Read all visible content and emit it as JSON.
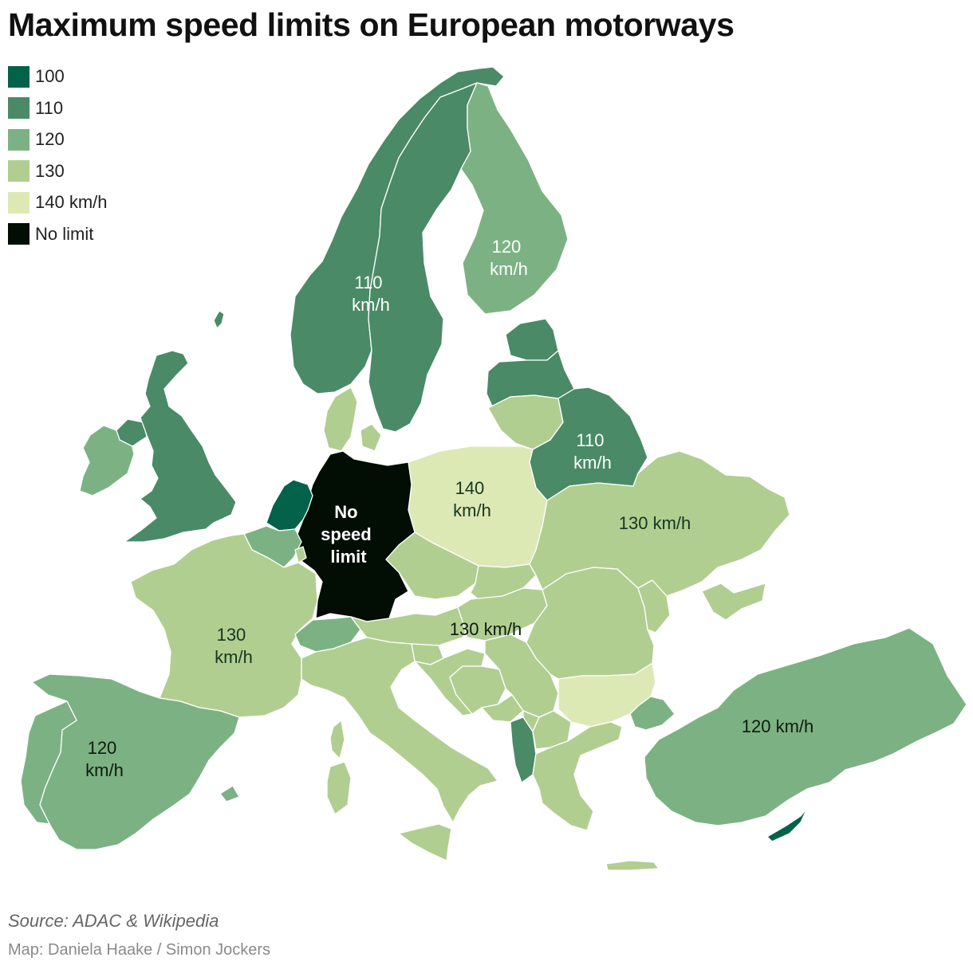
{
  "title": "Maximum speed limits on European motorways",
  "legend": [
    {
      "label": "100",
      "color": "#03624a"
    },
    {
      "label": "110",
      "color": "#4a8a67"
    },
    {
      "label": "120",
      "color": "#7cb283"
    },
    {
      "label": "130",
      "color": "#b1ce91"
    },
    {
      "label": "140 km/h",
      "color": "#dde9b5"
    },
    {
      "label": "No limit",
      "color": "#020d04"
    }
  ],
  "labels": {
    "finland": [
      "120",
      "km/h"
    ],
    "sweden_norway": [
      "110",
      "km/h"
    ],
    "belarus": [
      "110",
      "km/h"
    ],
    "poland": [
      "140",
      "km/h"
    ],
    "germany": [
      "No",
      "speed",
      "limit"
    ],
    "ukraine": "130 km/h",
    "central": "130 km/h",
    "france": [
      "130",
      "km/h"
    ],
    "spain": [
      "120",
      "km/h"
    ],
    "turkey": "120 km/h"
  },
  "source": "Source: ADAC & Wikipedia",
  "credit": "Map: Daniela Haake / Simon Jockers"
}
